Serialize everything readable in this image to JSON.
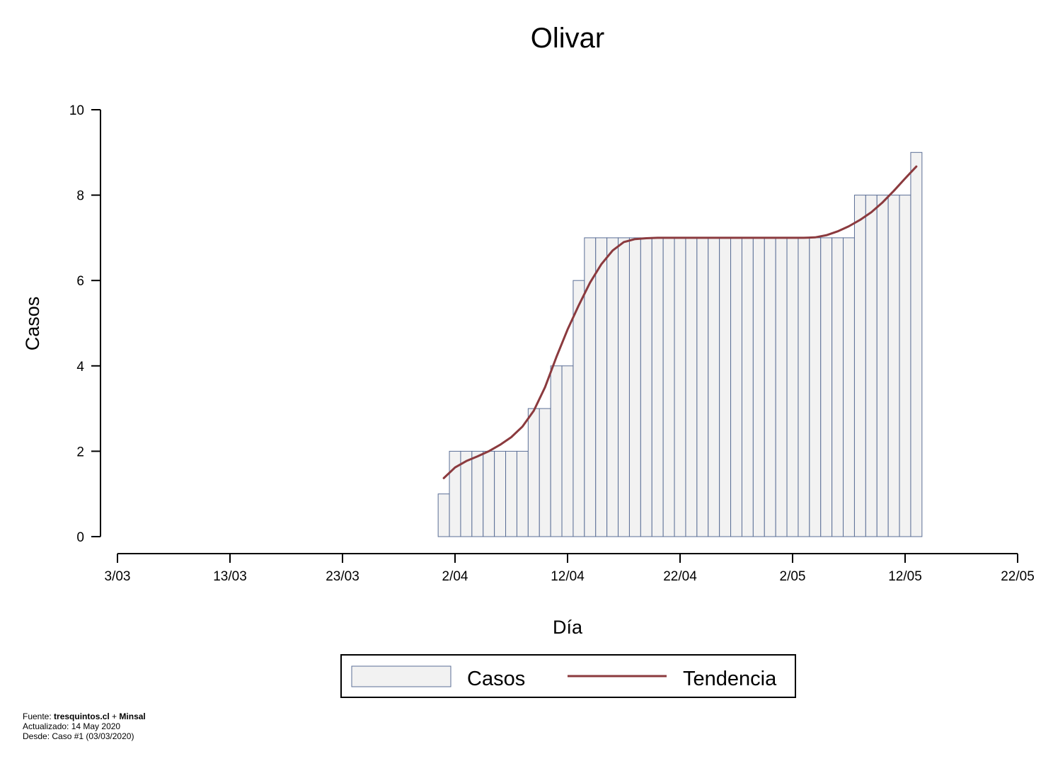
{
  "chart_data": {
    "type": "bar",
    "title": "Olivar",
    "xlabel": "Día",
    "ylabel": "Casos",
    "x_tick_labels": [
      "3/03",
      "13/03",
      "23/03",
      "2/04",
      "12/04",
      "22/04",
      "2/05",
      "12/05",
      "22/05"
    ],
    "y_ticks": [
      0,
      2,
      4,
      6,
      8,
      10
    ],
    "ylim": [
      0,
      10
    ],
    "xlim": [
      "2020-03-03",
      "2020-05-22"
    ],
    "grid": false,
    "legend_position": "bottom",
    "dates": [
      "2020-04-01",
      "2020-04-02",
      "2020-04-03",
      "2020-04-04",
      "2020-04-05",
      "2020-04-06",
      "2020-04-07",
      "2020-04-08",
      "2020-04-09",
      "2020-04-10",
      "2020-04-11",
      "2020-04-12",
      "2020-04-13",
      "2020-04-14",
      "2020-04-15",
      "2020-04-16",
      "2020-04-17",
      "2020-04-18",
      "2020-04-19",
      "2020-04-20",
      "2020-04-21",
      "2020-04-22",
      "2020-04-23",
      "2020-04-24",
      "2020-04-25",
      "2020-04-26",
      "2020-04-27",
      "2020-04-28",
      "2020-04-29",
      "2020-04-30",
      "2020-05-01",
      "2020-05-02",
      "2020-05-03",
      "2020-05-04",
      "2020-05-05",
      "2020-05-06",
      "2020-05-07",
      "2020-05-08",
      "2020-05-09",
      "2020-05-10",
      "2020-05-11",
      "2020-05-12",
      "2020-05-13"
    ],
    "series": [
      {
        "name": "Casos",
        "type": "bar",
        "color": "#f2f2f2",
        "edge_color": "#5a6e96",
        "values": [
          1,
          2,
          2,
          2,
          2,
          2,
          2,
          2,
          3,
          3,
          4,
          4,
          6,
          7,
          7,
          7,
          7,
          7,
          7,
          7,
          7,
          7,
          7,
          7,
          7,
          7,
          7,
          7,
          7,
          7,
          7,
          7,
          7,
          7,
          7,
          7,
          7,
          8,
          8,
          8,
          8,
          8,
          9
        ]
      },
      {
        "name": "Tendencia",
        "type": "line",
        "color": "#8b3a3e",
        "values": [
          1.37,
          1.62,
          1.77,
          1.88,
          2.0,
          2.15,
          2.33,
          2.58,
          2.95,
          3.5,
          4.2,
          4.85,
          5.42,
          5.95,
          6.38,
          6.7,
          6.9,
          6.97,
          6.99,
          7.0,
          7.0,
          7.0,
          7.0,
          7.0,
          7.0,
          7.0,
          7.0,
          7.0,
          7.0,
          7.0,
          7.0,
          7.0,
          7.0,
          7.01,
          7.06,
          7.15,
          7.27,
          7.42,
          7.6,
          7.83,
          8.1,
          8.39,
          8.67
        ]
      }
    ]
  },
  "footnote": {
    "source_prefix": "Fuente: ",
    "source_site": "tresquintos.cl",
    "source_join": " + ",
    "source_org": "Minsal",
    "updated": "Actualizado: 14 May 2020",
    "since": "Desde: Caso #1  (03/03/2020)"
  }
}
